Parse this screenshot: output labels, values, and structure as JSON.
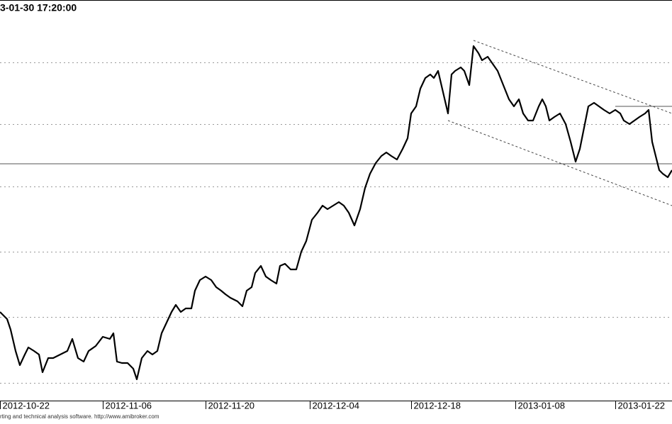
{
  "chart_data": {
    "type": "line",
    "title": "3-01-30 17:20:00",
    "footer": "rting and technical analysis software. http://www.amibroker.com",
    "xlim": [
      0,
      948
    ],
    "ylim": [
      0,
      565
    ],
    "xticks": [
      {
        "value": 0,
        "label": "2012-10-22"
      },
      {
        "value": 145,
        "label": "2012-11-06"
      },
      {
        "value": 290,
        "label": "2012-11-20"
      },
      {
        "value": 437,
        "label": "2012-12-04"
      },
      {
        "value": 580,
        "label": "2012-12-18"
      },
      {
        "value": 727,
        "label": "2013-01-08"
      },
      {
        "value": 868,
        "label": "2013-01-22"
      }
    ],
    "yticks": [
      25,
      118,
      210,
      302,
      390,
      477
    ],
    "grid": true,
    "series": [
      {
        "color": "#000000",
        "x": [
          0,
          10,
          15,
          22,
          28,
          35,
          40,
          48,
          55,
          60,
          68,
          75,
          85,
          95,
          102,
          110,
          118,
          125,
          135,
          145,
          155,
          160,
          165,
          172,
          180,
          188,
          193,
          200,
          208,
          215,
          222,
          228,
          235,
          242,
          248,
          255,
          262,
          270,
          275,
          282,
          290,
          298,
          305,
          312,
          318,
          325,
          335,
          342,
          348,
          355,
          360,
          368,
          375,
          382,
          390,
          395,
          402,
          410,
          418,
          425,
          432,
          440,
          448,
          455,
          462,
          470,
          478,
          485,
          492,
          500,
          508,
          515,
          522,
          530,
          538,
          545,
          552,
          560,
          568,
          575,
          580,
          587,
          593,
          600,
          607,
          612,
          618,
          625,
          632,
          637,
          642,
          650,
          655,
          662,
          668,
          675,
          680,
          688,
          695,
          702,
          710,
          718,
          725,
          732,
          738,
          745,
          752,
          760,
          765,
          770,
          775,
          782,
          790,
          798,
          805,
          812,
          818,
          825,
          830,
          838,
          845,
          852,
          860,
          868,
          875,
          880,
          888,
          895,
          902,
          910,
          915,
          920,
          925,
          930,
          935,
          942,
          948
        ],
        "values": [
          125,
          115,
          100,
          70,
          50,
          65,
          75,
          70,
          65,
          40,
          60,
          60,
          65,
          70,
          87,
          60,
          55,
          70,
          77,
          90,
          87,
          95,
          55,
          53,
          53,
          45,
          30,
          60,
          70,
          65,
          70,
          95,
          110,
          125,
          135,
          125,
          130,
          130,
          155,
          170,
          175,
          170,
          160,
          155,
          150,
          145,
          140,
          133,
          155,
          160,
          180,
          190,
          175,
          170,
          165,
          190,
          193,
          185,
          185,
          210,
          225,
          255,
          265,
          275,
          270,
          275,
          280,
          275,
          265,
          247,
          270,
          300,
          320,
          335,
          345,
          350,
          345,
          340,
          355,
          370,
          405,
          415,
          440,
          455,
          460,
          455,
          465,
          435,
          405,
          460,
          465,
          470,
          465,
          445,
          500,
          490,
          480,
          485,
          475,
          465,
          445,
          425,
          415,
          425,
          405,
          395,
          395,
          415,
          425,
          415,
          395,
          400,
          405,
          390,
          365,
          337,
          355,
          390,
          415,
          420,
          415,
          410,
          405,
          410,
          405,
          395,
          390,
          395,
          400,
          405,
          410,
          365,
          345,
          325,
          320,
          315,
          325
        ]
      }
    ],
    "lines": [
      {
        "style": "dashed",
        "x": [
          668,
          948
        ],
        "values": [
          508,
          405
        ]
      },
      {
        "style": "dashed",
        "x": [
          632,
          948
        ],
        "values": [
          395,
          275
        ]
      },
      {
        "style": "solid",
        "x": [
          0,
          948
        ],
        "values": [
          334,
          334
        ]
      },
      {
        "style": "solid",
        "x": [
          868,
          948
        ],
        "values": [
          415,
          415
        ]
      }
    ]
  }
}
